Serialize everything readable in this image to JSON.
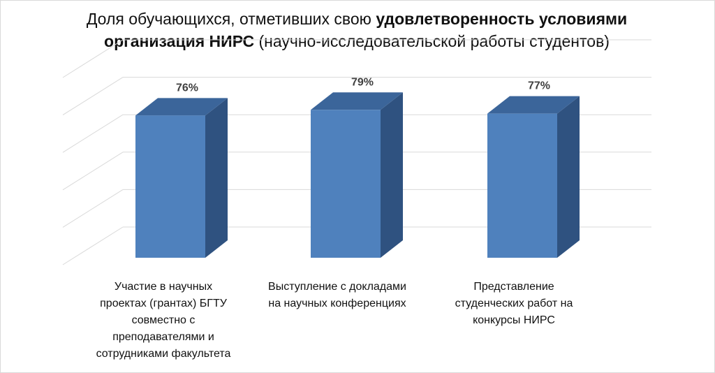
{
  "chart_data": {
    "type": "bar",
    "title_parts": [
      "Доля обучающихся, отметивших свою ",
      "удовлетворенность условиями организация НИРС",
      " (научно-исследовательской работы студентов)"
    ],
    "categories": [
      "Участие в научных проектах (грантах) БГТУ совместно с преподавателями и сотрудниками факультета",
      "Выступление с докладами на научных конференциях",
      "Представление студенческих работ на конкурсы НИРС"
    ],
    "category_lines": [
      "Участие в научных\nпроектах (грантах) БГТУ\nсовместно с\nпреподавателями и\nсотрудниками факультета",
      "Выступление с докладами\nна научных конференциях",
      "Представление\nстуденческих работ на\nконкурсы НИРС"
    ],
    "values": [
      76,
      79,
      77
    ],
    "data_labels": [
      "76%",
      "79%",
      "77%"
    ],
    "unit": "%",
    "ylim": [
      0,
      100
    ],
    "grid": true,
    "three_d": true,
    "colors": {
      "front": "#4f81bd",
      "top": "#3b659a",
      "side": "#2f5280",
      "grid": "#d9d9d9",
      "label": "#404040"
    }
  }
}
